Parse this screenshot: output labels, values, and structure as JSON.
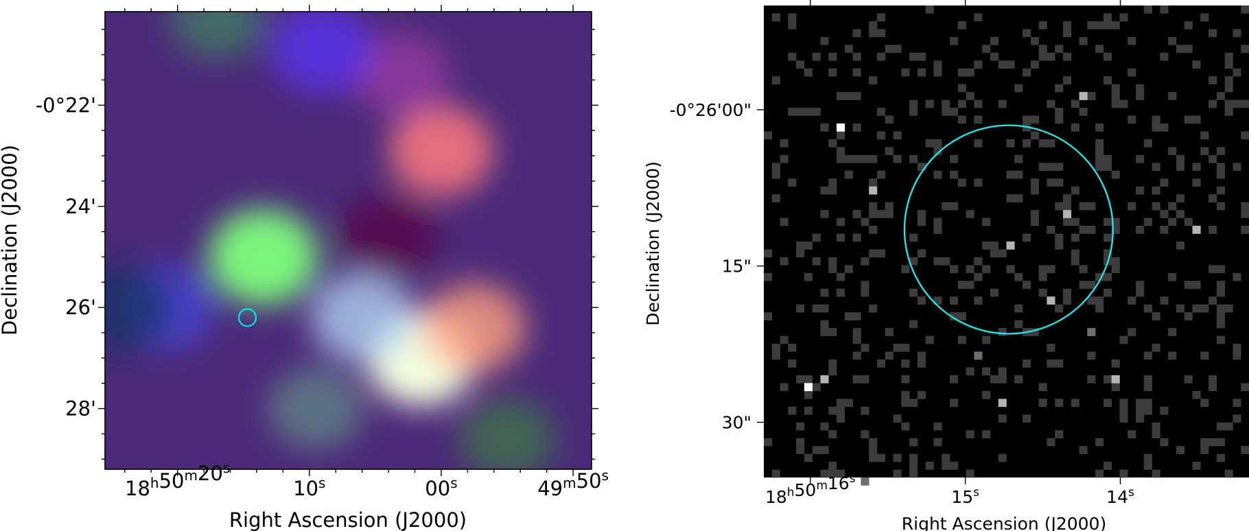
{
  "chart_data": [
    {
      "type": "heatmap",
      "image": "rgb-composite",
      "xlabel": "Right Ascension (J2000)",
      "ylabel": "Declination (J2000)",
      "x_ticks": [
        {
          "h": "18",
          "m": "50",
          "s": "20",
          "ra_sec": 20
        },
        {
          "s": "10",
          "ra_sec": 10
        },
        {
          "s": "00",
          "ra_sec": 0
        },
        {
          "m": "49",
          "s": "50",
          "ra_sec": -10
        }
      ],
      "y_ticks": [
        {
          "label": "-0°22'",
          "dec_arcmin": -22
        },
        {
          "label": "24'",
          "dec_arcmin": -24
        },
        {
          "label": "26'",
          "dec_arcmin": -26
        },
        {
          "label": "28'",
          "dec_arcmin": -28
        }
      ],
      "xlim_ra_sec": [
        25.5,
        -11.4
      ],
      "ylim_dec_arcmin": [
        -29.2,
        -20.15
      ],
      "circle": {
        "ra_sec": 14.7,
        "dec_arcmin": -26.2,
        "radius_arcmin": 0.17,
        "color": "#00e5ee"
      },
      "emission": [
        {
          "ra_sec": 13.5,
          "dec_arcmin": -25.0,
          "color": "#7cf57c",
          "strength": 1.0
        },
        {
          "ra_sec": 1.5,
          "dec_arcmin": -27.0,
          "color": "#f4ffe0",
          "strength": 1.0
        },
        {
          "ra_sec": 6.0,
          "dec_arcmin": -26.2,
          "color": "#b0d0f0",
          "strength": 0.8
        },
        {
          "ra_sec": -2.5,
          "dec_arcmin": -26.4,
          "color": "#ffa080",
          "strength": 0.8
        },
        {
          "ra_sec": 0.0,
          "dec_arcmin": -22.9,
          "color": "#ff7a80",
          "strength": 0.85
        },
        {
          "ra_sec": 3.0,
          "dec_arcmin": -21.4,
          "color": "#b040b0",
          "strength": 0.6
        },
        {
          "ra_sec": 9.0,
          "dec_arcmin": -20.9,
          "color": "#5a32f0",
          "strength": 0.8
        },
        {
          "ra_sec": 21.0,
          "dec_arcmin": -26.0,
          "color": "#4a4ae8",
          "strength": 0.7
        },
        {
          "ra_sec": 9.5,
          "dec_arcmin": -28.0,
          "color": "#6aa08c",
          "strength": 0.6
        },
        {
          "ra_sec": -5.0,
          "dec_arcmin": -28.6,
          "color": "#3c8a3c",
          "strength": 0.6
        },
        {
          "ra_sec": 17.0,
          "dec_arcmin": -20.3,
          "color": "#3caa5a",
          "strength": 0.5
        },
        {
          "ra_sec": 4.0,
          "dec_arcmin": -24.6,
          "color": "#5a0040",
          "strength": 0.7
        },
        {
          "ra_sec": 24.0,
          "dec_arcmin": -26.0,
          "color": "#10305a",
          "strength": 0.7
        }
      ]
    },
    {
      "type": "heatmap",
      "image": "grayscale-counts",
      "xlabel": "Right Ascension (J2000)",
      "ylabel": "Declination (J2000)",
      "x_ticks": [
        {
          "h": "18",
          "m": "50",
          "s": "16",
          "ra_sec": 16
        },
        {
          "s": "15",
          "ra_sec": 15
        },
        {
          "s": "14",
          "ra_sec": 14
        }
      ],
      "y_ticks": [
        {
          "label": "-0°26'00\"",
          "dec_arcsec": 0
        },
        {
          "label": "15\"",
          "dec_arcsec": -15
        },
        {
          "label": "30\"",
          "dec_arcsec": -30
        }
      ],
      "xlim_ra_sec": [
        16.3,
        13.17
      ],
      "ylim_dec_arcsec": [
        -35.3,
        10.0
      ],
      "circle": {
        "ra_sec": 14.72,
        "dec_arcsec": -11.5,
        "radius_arcsec": 10.0,
        "color": "#25e2e8"
      },
      "grid_size": [
        60,
        60
      ],
      "pixel_levels": [
        "#000000",
        "#3c3c3c",
        "#6e6e6e",
        "#b4b4b4",
        "#ffffff"
      ],
      "bright_pixels": [
        [
          9,
          15,
          4
        ],
        [
          5,
          48,
          4
        ],
        [
          30,
          30,
          3
        ],
        [
          35,
          37,
          3
        ],
        [
          37,
          26,
          3
        ],
        [
          39,
          11,
          3
        ],
        [
          13,
          23,
          3
        ],
        [
          7,
          47,
          3
        ],
        [
          43,
          47,
          3
        ],
        [
          29,
          50,
          3
        ],
        [
          53,
          28,
          3
        ],
        [
          40,
          41,
          2
        ],
        [
          26,
          44,
          2
        ],
        [
          12,
          60,
          2
        ]
      ]
    }
  ]
}
